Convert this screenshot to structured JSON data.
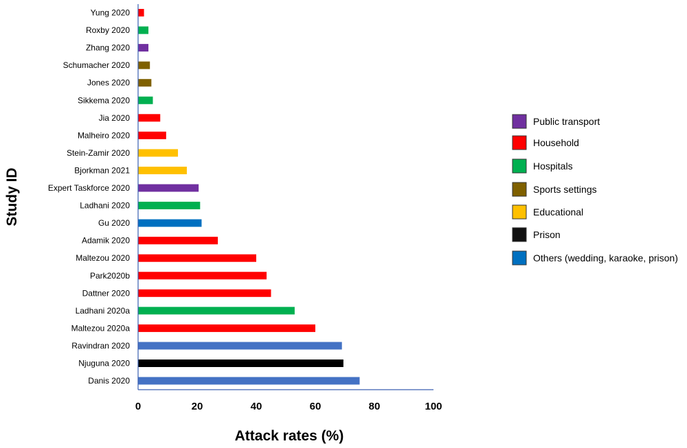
{
  "chart_data": {
    "type": "bar",
    "orientation": "horizontal",
    "title": "",
    "xlabel": "Attack rates (%)",
    "ylabel": "Study ID",
    "xlim": [
      0,
      100
    ],
    "xticks": [
      0,
      20,
      40,
      60,
      80,
      100
    ],
    "grid": false,
    "legend_position": "right",
    "categories": [
      "Yung 2020",
      "Roxby 2020",
      "Zhang 2020",
      "Schumacher 2020",
      "Jones 2020",
      "Sikkema 2020",
      "Jia 2020",
      "Malheiro 2020",
      "Stein-Zamir 2020",
      "Bjorkman 2021",
      "Expert Taskforce 2020",
      "Ladhani 2020",
      "Gu 2020",
      "Adamik 2020",
      "Maltezou 2020",
      "Park2020b",
      "Dattner 2020",
      "Ladhani 2020a",
      "Maltezou 2020a",
      "Ravindran 2020",
      "Njuguna 2020",
      "Danis 2020"
    ],
    "values": [
      2,
      3.5,
      3.5,
      4,
      4.5,
      5,
      7.5,
      9.5,
      13.5,
      16.5,
      20.5,
      21,
      21.5,
      27,
      40,
      43.5,
      45,
      53,
      60,
      69,
      69.5,
      75
    ],
    "settings": [
      "Household",
      "Hospitals",
      "Public transport",
      "Sports settings",
      "Sports settings",
      "Hospitals",
      "Household",
      "Household",
      "Educational",
      "Educational",
      "Public transport",
      "Hospitals",
      "Others (wedding, karaoke, prison)",
      "Household",
      "Household",
      "Household",
      "Household",
      "Hospitals",
      "Household",
      "Others (wedding, karaoke, prison)",
      "Prison",
      "Others (wedding, karaoke, prison)"
    ],
    "legend": [
      {
        "label": "Public transport",
        "color": "#7030A0"
      },
      {
        "label": "Household",
        "color": "#FF0000"
      },
      {
        "label": "Hospitals",
        "color": "#00B050"
      },
      {
        "label": "Sports settings",
        "color": "#7F6000"
      },
      {
        "label": "Educational",
        "color": "#FFC000"
      },
      {
        "label": "Prison",
        "color": "#111111"
      },
      {
        "label": "Others (wedding, karaoke, prison)",
        "color": "#0070C0"
      }
    ],
    "bar_colors": [
      "#FF0000",
      "#00B050",
      "#7030A0",
      "#7F6000",
      "#7F6000",
      "#00B050",
      "#FF0000",
      "#FF0000",
      "#FFC000",
      "#FFC000",
      "#7030A0",
      "#00B050",
      "#0070C0",
      "#FF0000",
      "#FF0000",
      "#FF0000",
      "#FF0000",
      "#00B050",
      "#FF0000",
      "#4472C4",
      "#000000",
      "#4472C4"
    ]
  }
}
